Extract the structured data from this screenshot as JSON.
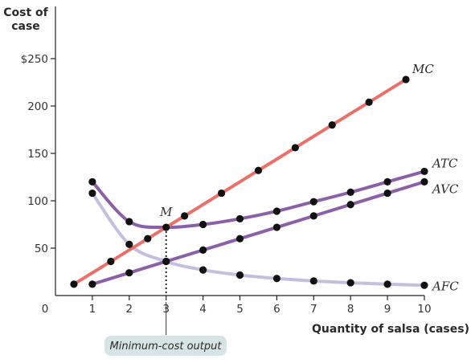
{
  "colors": {
    "MC": "#e8726a",
    "ATC": "#8c5fa8",
    "AVC": "#8c5fa8",
    "AFC": "#c4bfdf",
    "marker": "#111111",
    "callout_bg": "#d6e4e6"
  },
  "chart_data": {
    "type": "line",
    "ylabel": "Cost of case",
    "ylabel_lines": [
      "Cost of",
      "case"
    ],
    "xlabel": "Quantity of salsa (cases)",
    "xlim": [
      0,
      10
    ],
    "ylim": [
      0,
      250
    ],
    "x_ticks": [
      {
        "value": 0,
        "label": "0"
      },
      {
        "value": 1,
        "label": "1"
      },
      {
        "value": 2,
        "label": "2"
      },
      {
        "value": 3,
        "label": "3"
      },
      {
        "value": 4,
        "label": "4"
      },
      {
        "value": 5,
        "label": "5"
      },
      {
        "value": 6,
        "label": "6"
      },
      {
        "value": 7,
        "label": "7"
      },
      {
        "value": 8,
        "label": "8"
      },
      {
        "value": 9,
        "label": "9"
      },
      {
        "value": 10,
        "label": "10"
      }
    ],
    "y_ticks": [
      {
        "value": 50,
        "label": "50"
      },
      {
        "value": 100,
        "label": "100"
      },
      {
        "value": 150,
        "label": "150"
      },
      {
        "value": 200,
        "label": "200"
      },
      {
        "value": 250,
        "label": "$250"
      }
    ],
    "grid": false,
    "series": [
      {
        "name": "MC",
        "color_key": "MC",
        "x": [
          0.5,
          1.5,
          2.5,
          3.5,
          4.5,
          5.5,
          6.5,
          7.5,
          8.5,
          9.5
        ],
        "y": [
          12,
          36,
          60,
          84,
          108,
          132,
          156,
          180,
          204,
          228
        ]
      },
      {
        "name": "ATC",
        "color_key": "ATC",
        "x": [
          1,
          2,
          3,
          4,
          5,
          6,
          7,
          8,
          9,
          10
        ],
        "y": [
          120,
          78,
          72,
          75,
          81,
          89,
          99,
          109,
          120,
          131
        ]
      },
      {
        "name": "AVC",
        "color_key": "AVC",
        "x": [
          1,
          2,
          3,
          4,
          5,
          6,
          7,
          8,
          9,
          10
        ],
        "y": [
          12,
          24,
          36,
          48,
          60,
          72,
          84,
          96,
          108,
          120
        ]
      },
      {
        "name": "AFC",
        "color_key": "AFC",
        "x": [
          1,
          2,
          3,
          4,
          5,
          6,
          7,
          8,
          9,
          10
        ],
        "y": [
          108,
          54,
          36,
          27,
          21.6,
          18,
          15.4,
          13.5,
          12,
          10.8
        ]
      }
    ],
    "annotations": {
      "minimum_point": {
        "label": "M",
        "x": 3,
        "y": 72
      },
      "callout": {
        "text": "Minimum-cost output",
        "x": 3
      }
    }
  }
}
